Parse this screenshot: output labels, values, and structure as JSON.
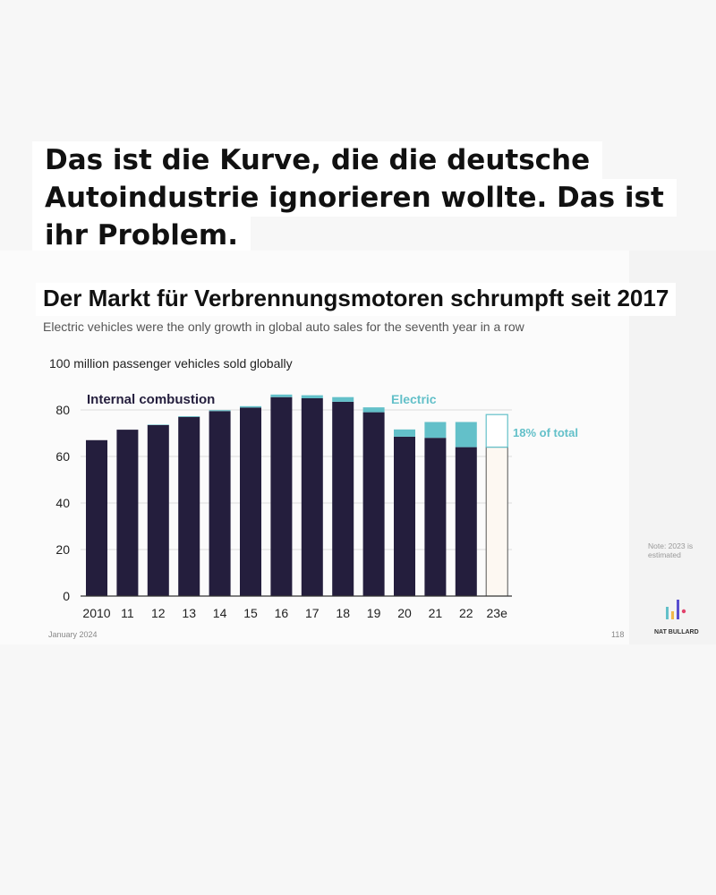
{
  "headline": {
    "lines": [
      "Das ist die Kurve, die die deutsche",
      "Autoindustrie ignorieren wollte. Das ist",
      "ihr Problem."
    ]
  },
  "chart_title": "Der Markt für Verbrennungsmotoren schrumpft seit 2017",
  "subtitle": "Electric vehicles were the only growth in global auto sales for the seventh year in a row",
  "unit_label": "100 million passenger vehicles sold globally",
  "footer": {
    "date": "January 2024",
    "page": "118",
    "note": "Note: 2023 is estimated",
    "brand": "NAT BULLARD"
  },
  "colors": {
    "ice": "#241e3d",
    "ev": "#63c0c9",
    "estimate_fill": "#fdf8f2",
    "estimate_ev_fill": "#ffffff",
    "axis": "#333333",
    "grid": "#dddddd"
  },
  "chart_data": {
    "type": "bar",
    "stacked": true,
    "categories": [
      "2010",
      "11",
      "12",
      "13",
      "14",
      "15",
      "16",
      "17",
      "18",
      "19",
      "20",
      "21",
      "22",
      "23e"
    ],
    "series": [
      {
        "name": "Internal combustion",
        "values": [
          67,
          71.5,
          73.5,
          77,
          79.5,
          81,
          85.5,
          85,
          83.5,
          79,
          68.5,
          68,
          64,
          64
        ]
      },
      {
        "name": "Electric",
        "values": [
          0,
          0,
          0.2,
          0.3,
          0.4,
          0.6,
          1.1,
          1.3,
          2.0,
          2.1,
          3.1,
          6.8,
          10.8,
          14
        ]
      }
    ],
    "estimated_categories": [
      "23e"
    ],
    "series_labels": [
      "Internal combustion",
      "Electric"
    ],
    "annotation": "18% of total",
    "yticks": [
      0,
      20,
      40,
      60,
      80
    ],
    "ylim": [
      0,
      90
    ],
    "grid": true
  }
}
